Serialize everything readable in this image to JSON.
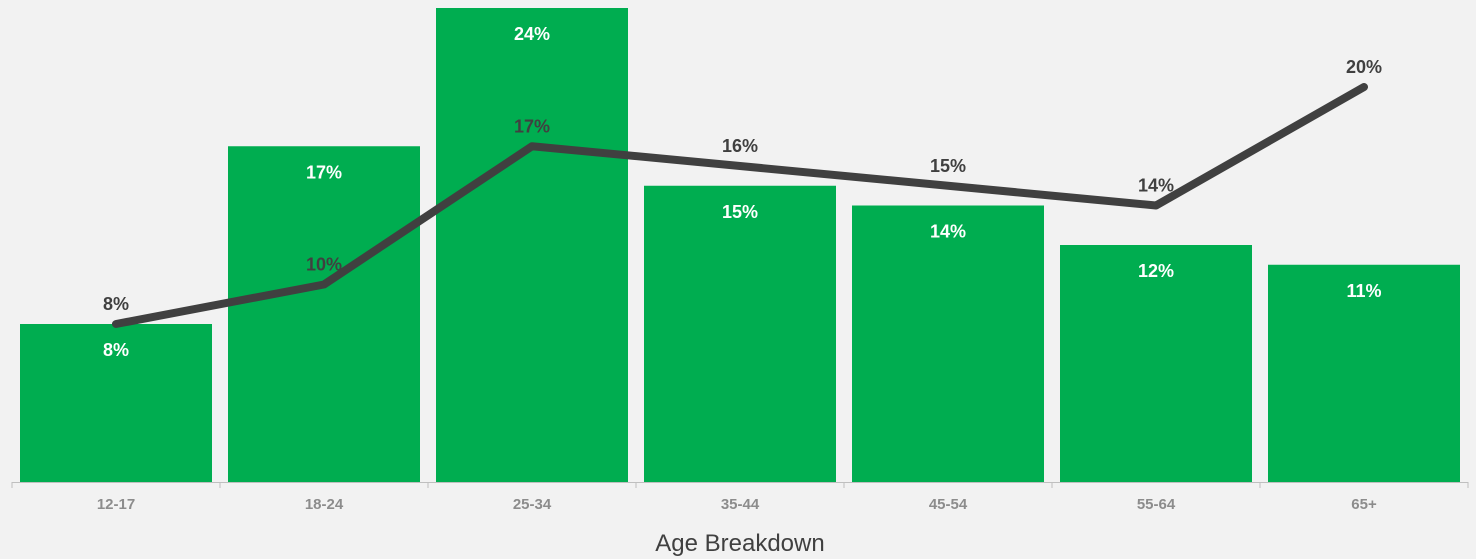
{
  "chart_data": {
    "type": "bar",
    "xlabel": "Age Breakdown",
    "ylabel": "",
    "title": "",
    "categories": [
      "12-17",
      "18-24",
      "25-34",
      "35-44",
      "45-54",
      "55-64",
      "65+"
    ],
    "series": [
      {
        "type": "bar",
        "values": [
          8,
          17,
          24,
          15,
          14,
          12,
          11
        ],
        "labels": [
          "8%",
          "17%",
          "24%",
          "15%",
          "14%",
          "12%",
          "11%"
        ]
      },
      {
        "type": "line",
        "values": [
          8,
          10,
          17,
          16,
          15,
          14,
          20
        ],
        "labels": [
          "8%",
          "10%",
          "17%",
          "16%",
          "15%",
          "14%",
          "20%"
        ]
      }
    ],
    "ylim": [
      0,
      24
    ],
    "grid": false,
    "legend": "none",
    "colors": {
      "bar": "#00ad50",
      "line": "#404040",
      "axis": "#bfbfbf",
      "tick_text": "#8c8c8c",
      "background": "#f2f2f2"
    }
  }
}
